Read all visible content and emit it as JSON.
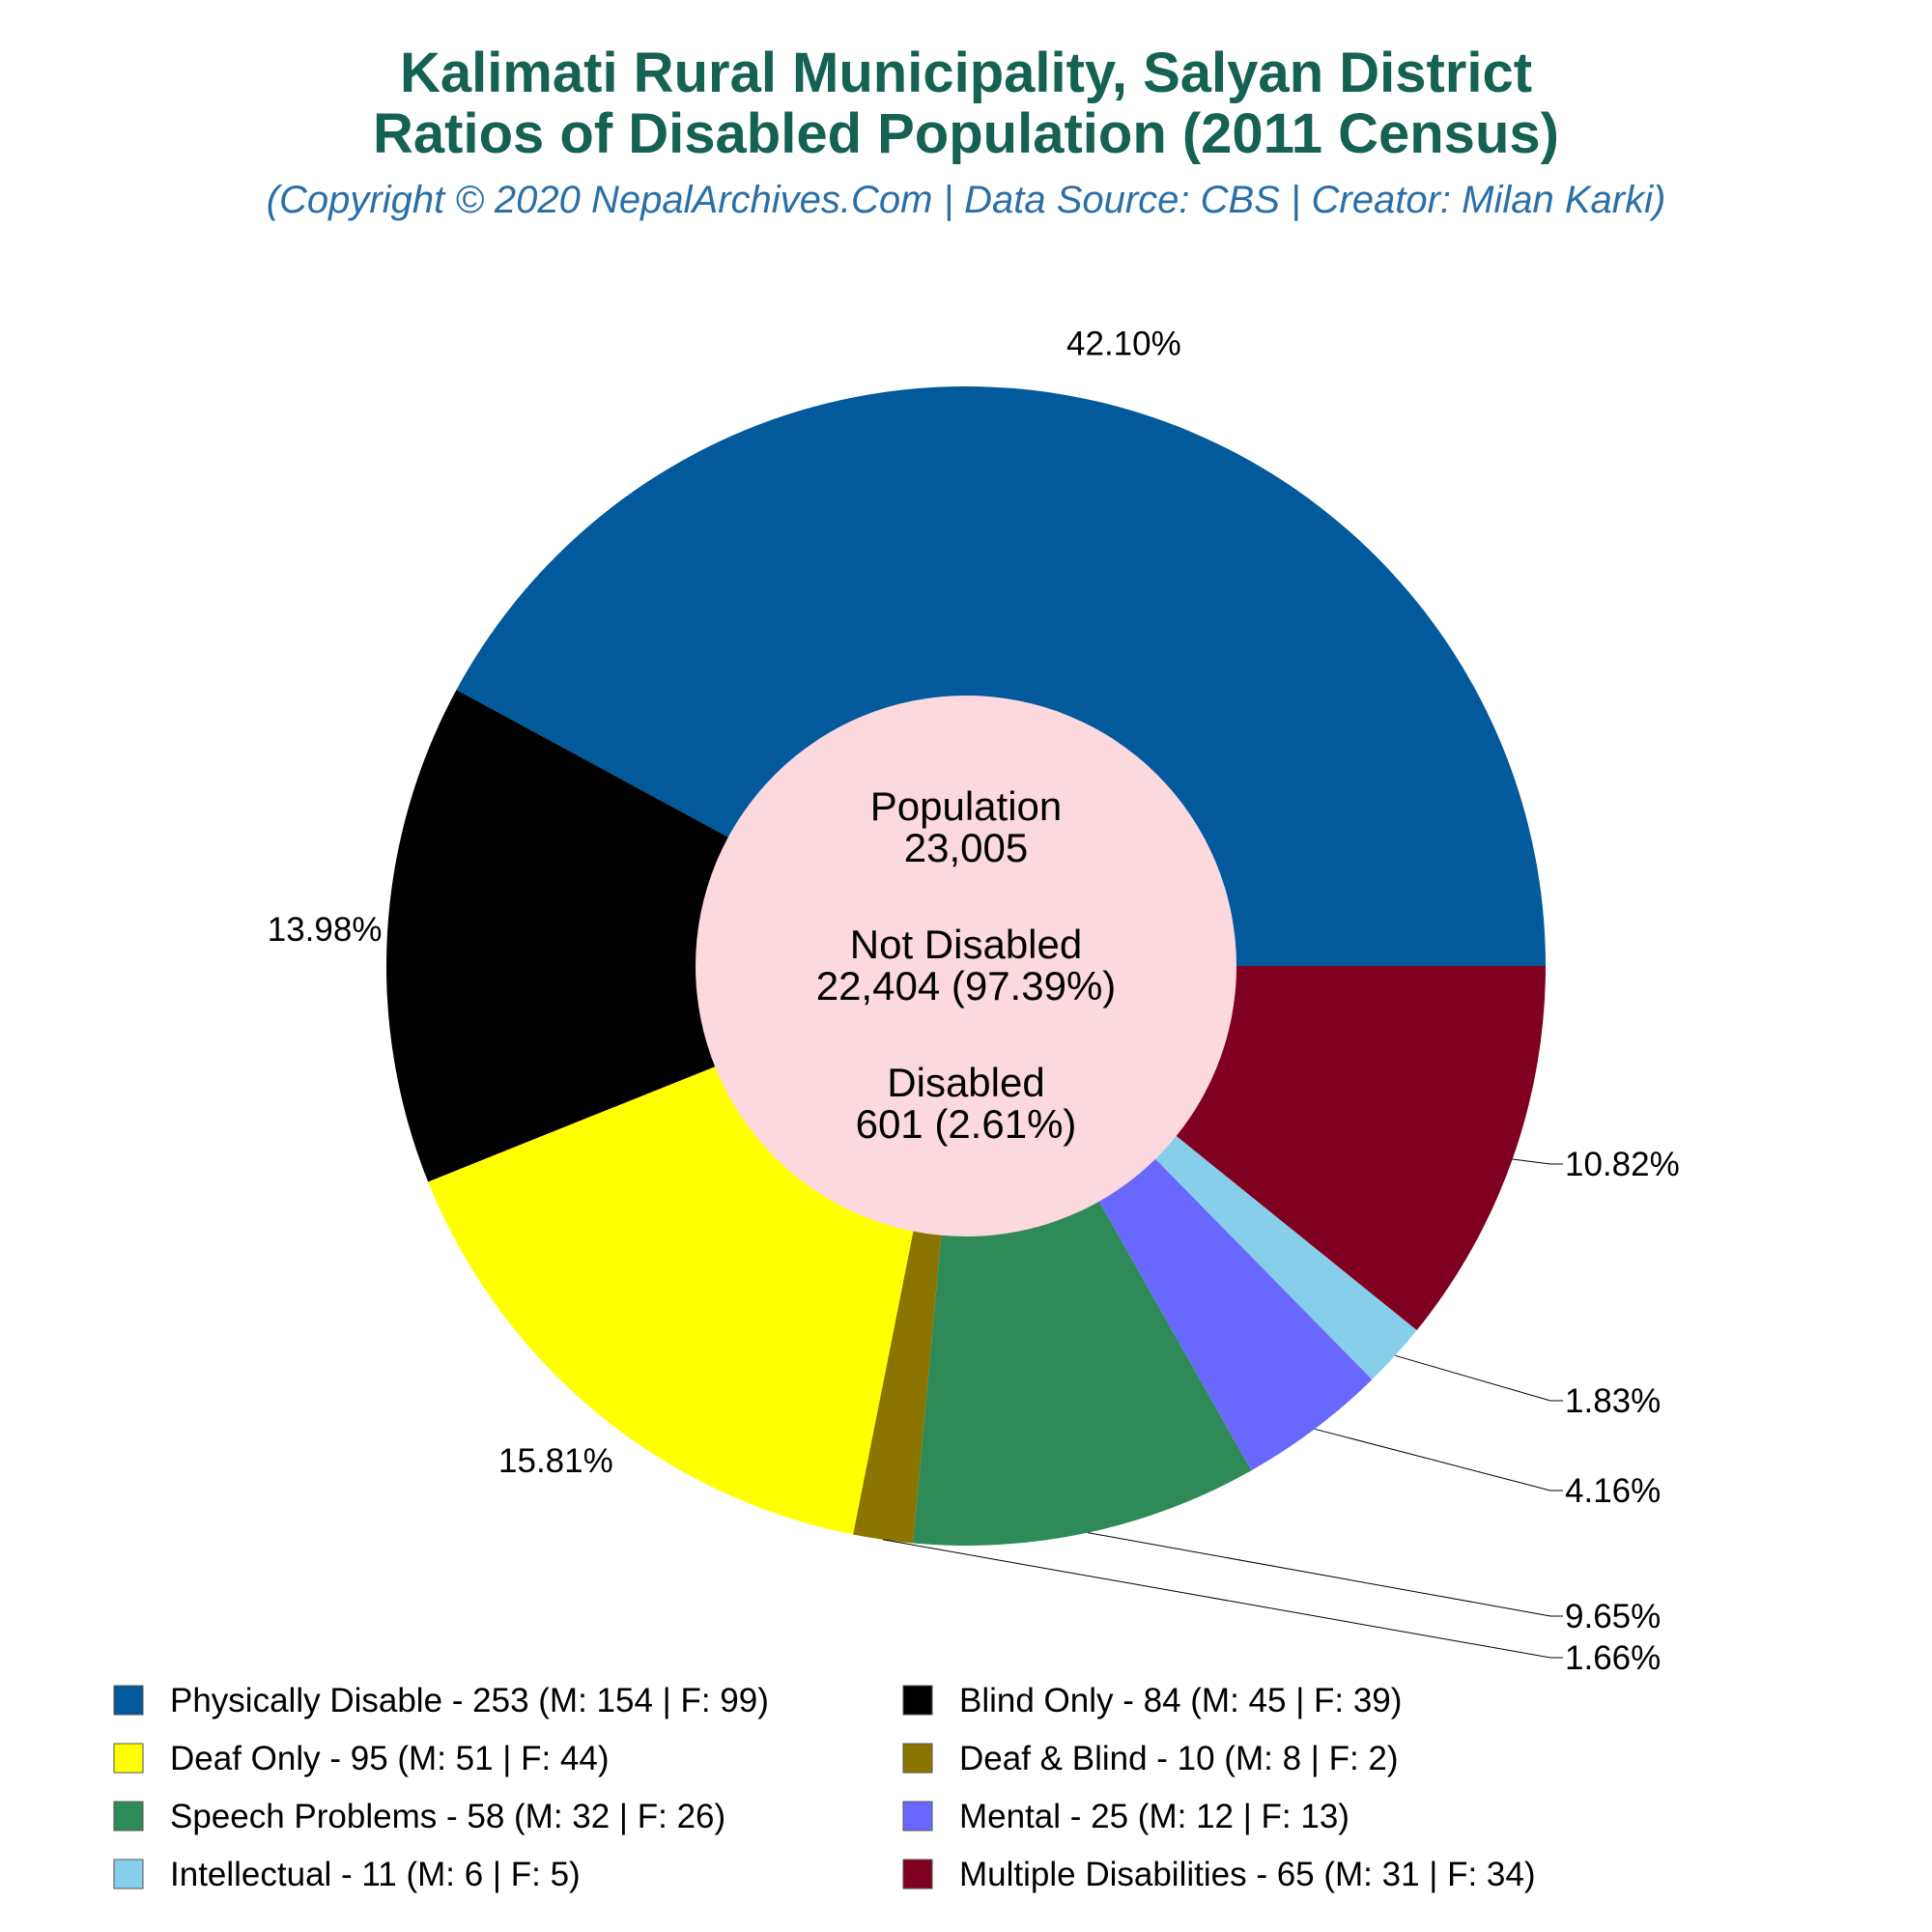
{
  "header": {
    "title_line1": "Kalimati Rural Municipality, Salyan District",
    "title_line2": "Ratios of Disabled Population (2011 Census)",
    "subtitle": "(Copyright © 2020 NepalArchives.Com | Data Source: CBS | Creator: Milan Karki)"
  },
  "center": {
    "population_label": "Population",
    "population_value": "23,005",
    "not_disabled_label": "Not Disabled",
    "not_disabled_value": "22,404 (97.39%)",
    "disabled_label": "Disabled",
    "disabled_value": "601 (2.61%)",
    "fill_color": "#fcd8df"
  },
  "chart_data": {
    "type": "pie",
    "variant": "donut",
    "start": "3 o'clock, clockwise order in data is counter-clockwise visually",
    "slices": [
      {
        "label": "Physically Disable",
        "value": 253,
        "male": 154,
        "female": 99,
        "percent_label": "42.10%",
        "color": "#02599c",
        "legend_text": "Physically Disable - 253 (M: 154 | F: 99)"
      },
      {
        "label": "Blind Only",
        "value": 84,
        "male": 45,
        "female": 39,
        "percent_label": "13.98%",
        "color": "#000000",
        "legend_text": "Blind Only - 84 (M: 45 | F: 39)"
      },
      {
        "label": "Deaf Only",
        "value": 95,
        "male": 51,
        "female": 44,
        "percent_label": "15.81%",
        "color": "#ffff00",
        "legend_text": "Deaf Only - 95 (M: 51 | F: 44)"
      },
      {
        "label": "Deaf & Blind",
        "value": 10,
        "male": 8,
        "female": 2,
        "percent_label": "1.66%",
        "color": "#8b7500",
        "legend_text": "Deaf & Blind - 10 (M: 8 | F: 2)"
      },
      {
        "label": "Speech Problems",
        "value": 58,
        "male": 32,
        "female": 26,
        "percent_label": "9.65%",
        "color": "#2e8b57",
        "legend_text": "Speech Problems - 58 (M: 32 | F: 26)"
      },
      {
        "label": "Mental",
        "value": 25,
        "male": 12,
        "female": 13,
        "percent_label": "4.16%",
        "color": "#6868ff",
        "legend_text": "Mental - 25 (M: 12 | F: 13)"
      },
      {
        "label": "Intellectual",
        "value": 11,
        "male": 6,
        "female": 5,
        "percent_label": "1.83%",
        "color": "#87ceeb",
        "legend_text": "Intellectual - 11 (M: 6 | F: 5)"
      },
      {
        "label": "Multiple Disabilities",
        "value": 65,
        "male": 31,
        "female": 34,
        "percent_label": "10.82%",
        "color": "#7f0020",
        "legend_text": "Multiple Disabilities - 65 (M: 31 | F: 34)"
      }
    ],
    "total_disabled": 601,
    "legend_placement": "bottom, two columns"
  }
}
